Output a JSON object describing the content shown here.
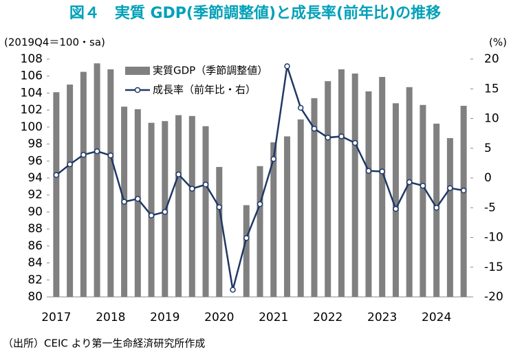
{
  "chart_data": {
    "type": "bar_line",
    "title": "図４　実質 GDP(季節調整値)と成長率(前年比)の推移",
    "y_label": "(2019Q4＝100・sa)",
    "y2_label": "(%)",
    "source": "（出所）CEIC より第一生命経済研究所作成",
    "categories": [
      "2017",
      null,
      null,
      null,
      "2018",
      null,
      null,
      null,
      "2019",
      null,
      null,
      null,
      "2020",
      null,
      null,
      null,
      "2021",
      null,
      null,
      null,
      "2022",
      null,
      null,
      null,
      "2023",
      null,
      null,
      null,
      "2024",
      null,
      null
    ],
    "series": [
      {
        "name": "実質GDP（季節調整値）",
        "color": "#808080",
        "kind": "bar",
        "values": [
          104.1,
          105.0,
          106.5,
          107.5,
          106.8,
          102.4,
          102.1,
          100.5,
          100.7,
          101.4,
          101.3,
          100.1,
          95.3,
          null,
          90.8,
          95.4,
          98.2,
          98.9,
          100.9,
          103.4,
          105.4,
          106.8,
          106.3,
          104.2,
          105.9,
          102.8,
          104.7,
          102.6,
          100.4,
          98.7,
          102.5
        ]
      },
      {
        "name": "成長率（前年比・右）",
        "color": "#1f3864",
        "kind": "line",
        "axis": "y2",
        "values": [
          0.5,
          2.3,
          3.9,
          4.5,
          3.8,
          -4.0,
          -3.5,
          -6.3,
          -5.7,
          0.6,
          -1.8,
          -1.1,
          -4.9,
          -18.8,
          -10.1,
          -4.4,
          3.2,
          18.8,
          11.8,
          8.3,
          6.8,
          7.0,
          5.9,
          1.2,
          1.1,
          -5.2,
          -0.7,
          -1.3,
          -5.0,
          -1.7,
          -2.1
        ]
      }
    ],
    "ylim": [
      80,
      108
    ],
    "yticks": [
      80,
      82,
      84,
      86,
      88,
      90,
      92,
      94,
      96,
      98,
      100,
      102,
      104,
      106,
      108
    ],
    "y2lim": [
      -20,
      20
    ],
    "y2ticks": [
      -20,
      -15,
      -10,
      -5,
      0,
      5,
      10,
      15,
      20
    ],
    "y2_negative_color": "#ff0000"
  }
}
